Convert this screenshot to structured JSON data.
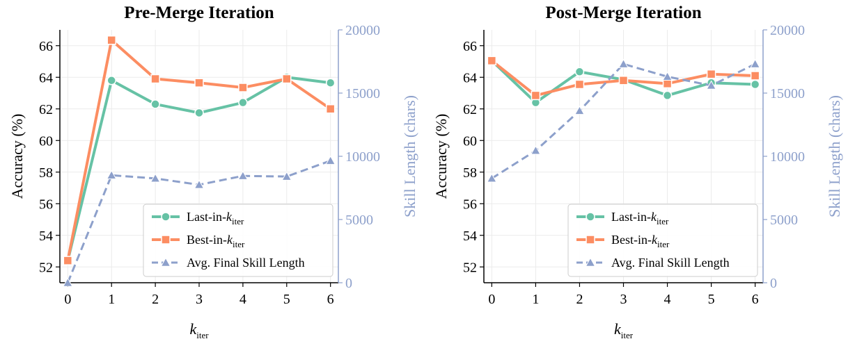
{
  "colors": {
    "last": "#66c2a5",
    "best": "#fc8d62",
    "avg": "#8da0cb",
    "grid": "#ebebeb"
  },
  "chart_data": [
    {
      "type": "line",
      "title": "Pre-Merge Iteration",
      "xlabel_main": "k",
      "xlabel_sub": "iter",
      "ylabel": "Accuracy (%)",
      "ylabel_right": "Skill Length (chars)",
      "x": [
        0,
        1,
        2,
        3,
        4,
        5,
        6
      ],
      "xticks": [
        "0",
        "1",
        "2",
        "3",
        "4",
        "5",
        "6"
      ],
      "ylim": [
        51.0,
        67.0
      ],
      "yticks": [
        "52",
        "54",
        "56",
        "58",
        "60",
        "62",
        "64",
        "66"
      ],
      "ylim_right": [
        0,
        20000
      ],
      "yticks_right": [
        "0",
        "5000",
        "10000",
        "15000",
        "20000"
      ],
      "series": [
        {
          "name_main": "Last-in-",
          "name_k": "k",
          "name_sub": "iter",
          "axis": "left",
          "marker": "circle",
          "values": [
            52.4,
            63.8,
            62.3,
            61.75,
            62.4,
            64.0,
            63.65
          ]
        },
        {
          "name_main": "Best-in-",
          "name_k": "k",
          "name_sub": "iter",
          "axis": "left",
          "marker": "square",
          "values": [
            52.4,
            66.35,
            63.9,
            63.65,
            63.35,
            63.9,
            62.0
          ]
        },
        {
          "name": "Avg. Final Skill Length",
          "axis": "right",
          "marker": "triangle",
          "dashed": true,
          "values": [
            0,
            8500,
            8250,
            7750,
            8450,
            8400,
            9650
          ]
        }
      ],
      "legend_position": "lower right",
      "grid": true
    },
    {
      "type": "line",
      "title": "Post-Merge Iteration",
      "xlabel_main": "k",
      "xlabel_sub": "iter",
      "ylabel": "Accuracy (%)",
      "ylabel_right": "Skill Length (chars)",
      "x": [
        0,
        1,
        2,
        3,
        4,
        5,
        6
      ],
      "xticks": [
        "0",
        "1",
        "2",
        "3",
        "4",
        "5",
        "6"
      ],
      "ylim": [
        51.0,
        67.0
      ],
      "yticks": [
        "52",
        "54",
        "56",
        "58",
        "60",
        "62",
        "64",
        "66"
      ],
      "ylim_right": [
        0,
        20000
      ],
      "yticks_right": [
        "0",
        "5000",
        "10000",
        "15000",
        "20000"
      ],
      "series": [
        {
          "name_main": "Last-in-",
          "name_k": "k",
          "name_sub": "iter",
          "axis": "left",
          "marker": "circle",
          "values": [
            65.05,
            62.4,
            64.35,
            63.85,
            62.85,
            63.65,
            63.55
          ]
        },
        {
          "name_main": "Best-in-",
          "name_k": "k",
          "name_sub": "iter",
          "axis": "left",
          "marker": "square",
          "values": [
            65.05,
            62.85,
            63.55,
            63.8,
            63.6,
            64.2,
            64.1
          ]
        },
        {
          "name": "Avg. Final Skill Length",
          "axis": "right",
          "marker": "triangle",
          "dashed": true,
          "values": [
            8250,
            10450,
            13600,
            17300,
            16300,
            15600,
            17300
          ]
        }
      ],
      "legend_position": "lower right",
      "grid": true
    }
  ]
}
